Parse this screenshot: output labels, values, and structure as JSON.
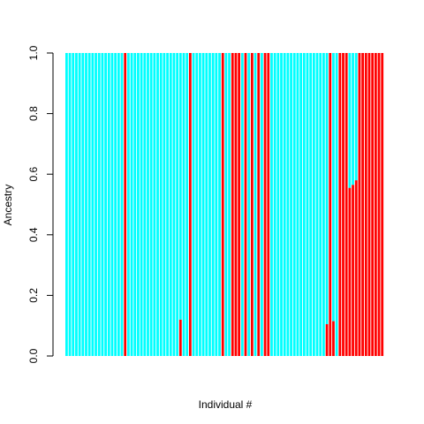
{
  "chart_data": {
    "type": "bar",
    "stacked": true,
    "title": "",
    "xlabel": "Individual #",
    "ylabel": "Ancestry",
    "ylim": [
      0,
      1
    ],
    "yticks": [
      0.0,
      0.2,
      0.4,
      0.6,
      0.8,
      1.0
    ],
    "ytick_labels": [
      "0.0",
      "0.2",
      "0.4",
      "0.6",
      "0.8",
      "1.0"
    ],
    "n_individuals": 98,
    "series": [
      {
        "name": "Red ancestry",
        "color": "#ff0000",
        "values": [
          0,
          0,
          0,
          0,
          0,
          0,
          0,
          0,
          0,
          0,
          0,
          0,
          0,
          0,
          0,
          0,
          0,
          0,
          1,
          0,
          0,
          0,
          0,
          0,
          0,
          0,
          0,
          0,
          0,
          0,
          0,
          0,
          0,
          0,
          0,
          0.12,
          0,
          0,
          1,
          0,
          0,
          0,
          0,
          0,
          0,
          0,
          0,
          0,
          1,
          0,
          0,
          1,
          1,
          1,
          0,
          1,
          0,
          1,
          0,
          1,
          0,
          1,
          1,
          0,
          0,
          0,
          0,
          0,
          0,
          0,
          0,
          0,
          0,
          0,
          0,
          0,
          0,
          0,
          0,
          0,
          0.105,
          1,
          0.115,
          0,
          1,
          1,
          1,
          0.555,
          0.565,
          0.58,
          1,
          1,
          1,
          1,
          1,
          1,
          1,
          1
        ]
      },
      {
        "name": "Cyan ancestry",
        "color": "#00ffff",
        "values": "complement of red (1 - red)"
      }
    ]
  }
}
